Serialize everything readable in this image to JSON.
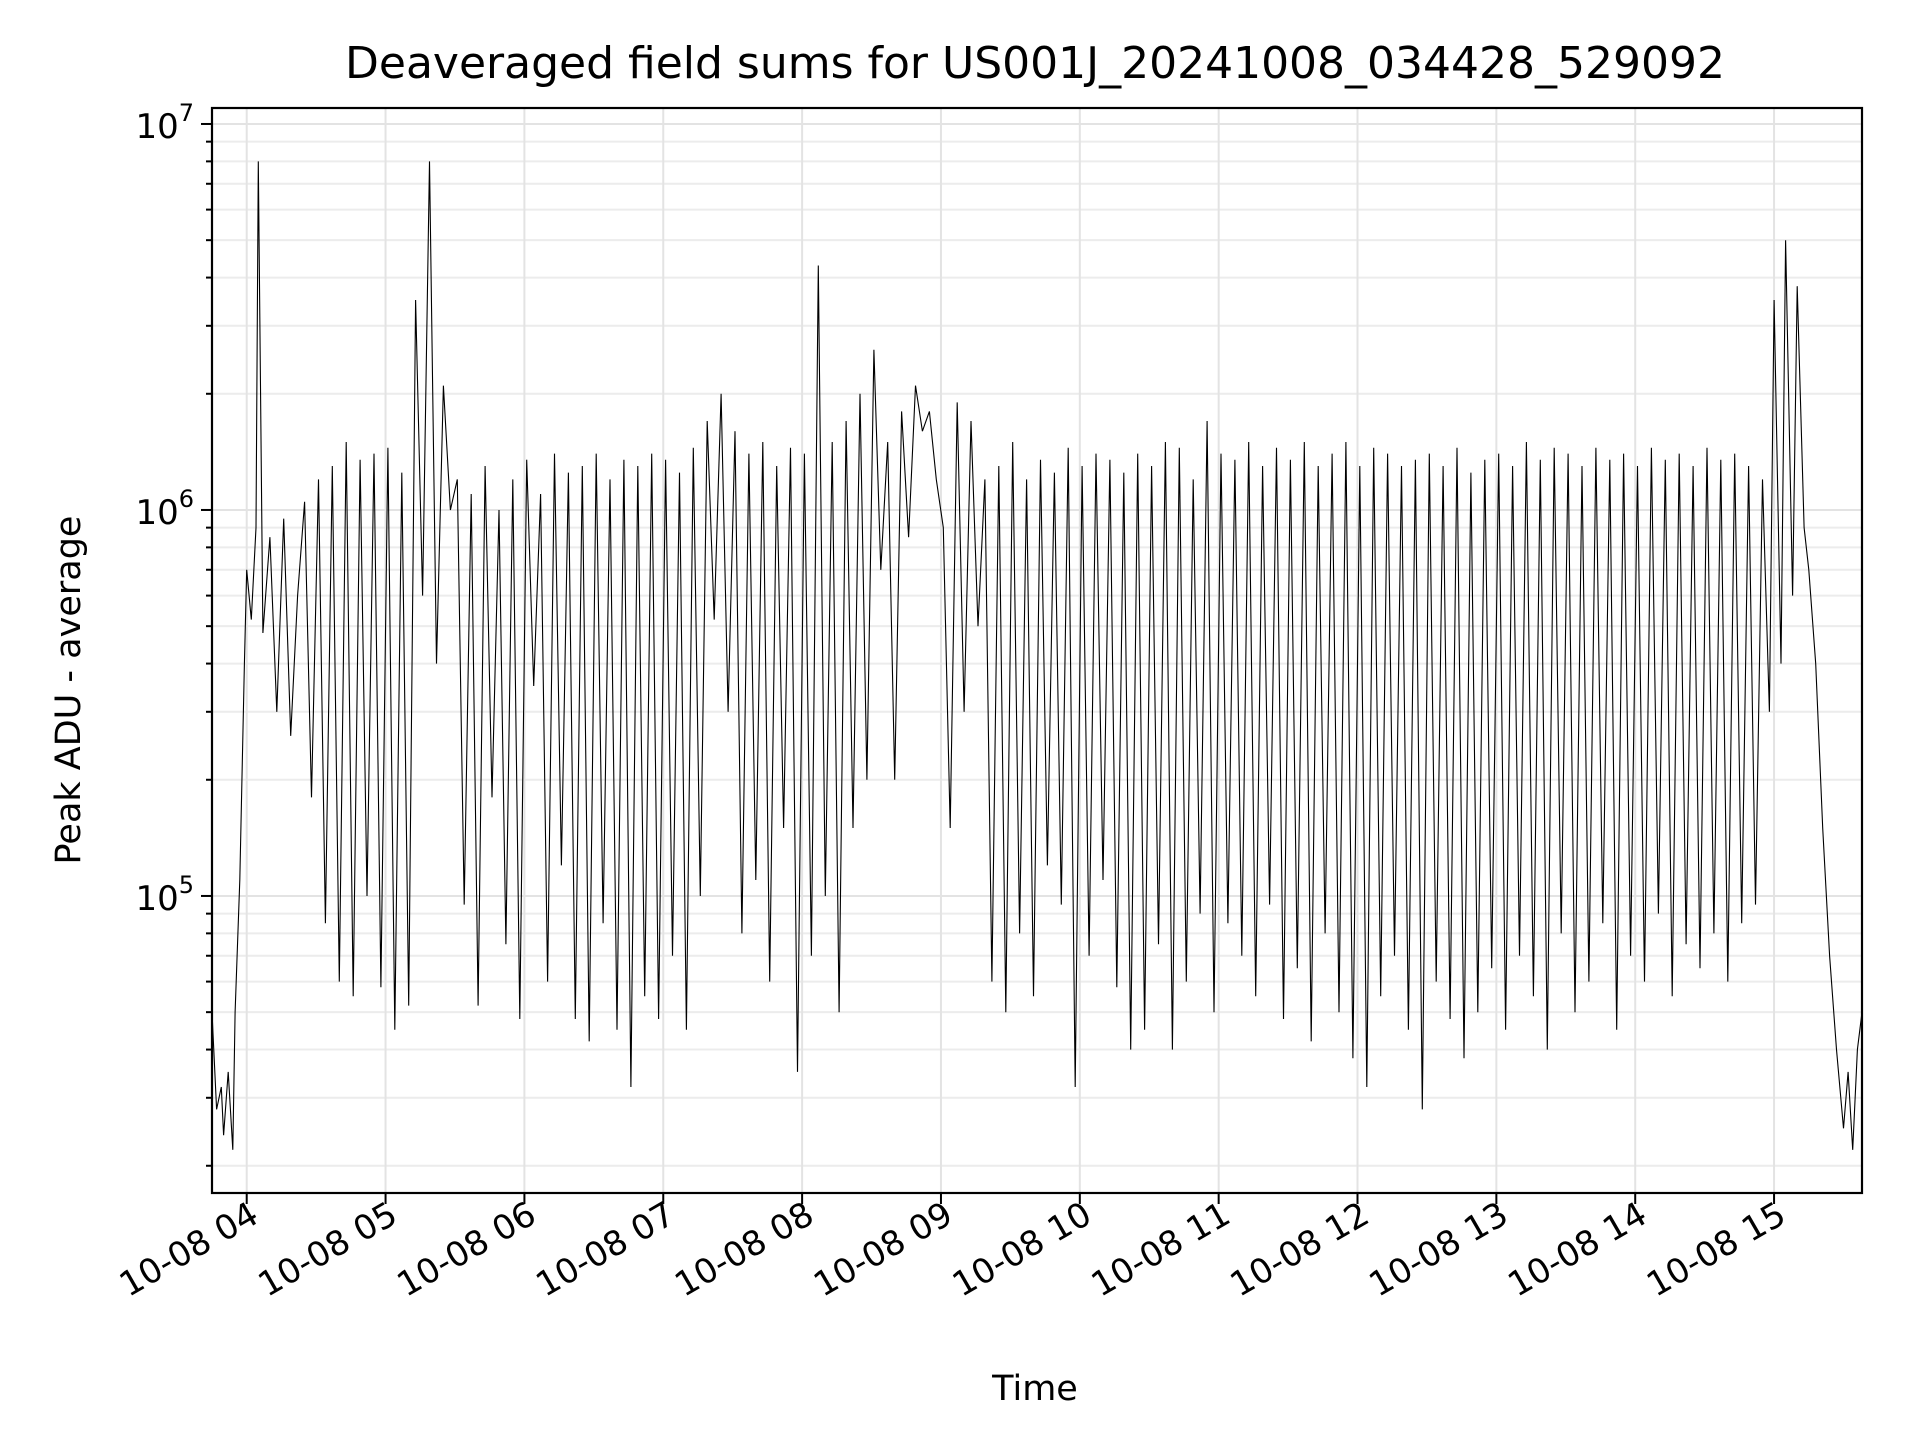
{
  "chart_data": {
    "type": "line",
    "title": "Deaveraged field sums for US001J_20241008_034428_529092",
    "xlabel": "Time",
    "ylabel": "Peak ADU - average",
    "yscale": "log",
    "ylim": [
      17000,
      11000000
    ],
    "xlim": [
      "2024-10-08 03:45",
      "2024-10-08 15:38"
    ],
    "grid": true,
    "colors": {
      "series": "#000000",
      "grid": "#e3e3e3",
      "axis": "#000000"
    },
    "x_ticks": [
      {
        "value": "2024-10-08 04:00",
        "label": "10-08 04"
      },
      {
        "value": "2024-10-08 05:00",
        "label": "10-08 05"
      },
      {
        "value": "2024-10-08 06:00",
        "label": "10-08 06"
      },
      {
        "value": "2024-10-08 07:00",
        "label": "10-08 07"
      },
      {
        "value": "2024-10-08 08:00",
        "label": "10-08 08"
      },
      {
        "value": "2024-10-08 09:00",
        "label": "10-08 09"
      },
      {
        "value": "2024-10-08 10:00",
        "label": "10-08 10"
      },
      {
        "value": "2024-10-08 11:00",
        "label": "10-08 11"
      },
      {
        "value": "2024-10-08 12:00",
        "label": "10-08 12"
      },
      {
        "value": "2024-10-08 13:00",
        "label": "10-08 13"
      },
      {
        "value": "2024-10-08 14:00",
        "label": "10-08 14"
      },
      {
        "value": "2024-10-08 15:00",
        "label": "10-08 15"
      }
    ],
    "y_ticks": [
      {
        "value": 100000,
        "base": "10",
        "exp": "5"
      },
      {
        "value": 1000000,
        "base": "10",
        "exp": "6"
      },
      {
        "value": 10000000,
        "base": "10",
        "exp": "7"
      }
    ],
    "series": [
      {
        "x": [
          "2024-10-08 03:45",
          "2024-10-08 03:47",
          "2024-10-08 03:49",
          "2024-10-08 03:50",
          "2024-10-08 03:52",
          "2024-10-08 03:54",
          "2024-10-08 03:55",
          "2024-10-08 03:57",
          "2024-10-08 03:59",
          "2024-10-08 04:00",
          "2024-10-08 04:02",
          "2024-10-08 04:04",
          "2024-10-08 04:05",
          "2024-10-08 04:07",
          "2024-10-08 04:10",
          "2024-10-08 04:13",
          "2024-10-08 04:16",
          "2024-10-08 04:19",
          "2024-10-08 04:22",
          "2024-10-08 04:25",
          "2024-10-08 04:28",
          "2024-10-08 04:31",
          "2024-10-08 04:34",
          "2024-10-08 04:37",
          "2024-10-08 04:40",
          "2024-10-08 04:43",
          "2024-10-08 04:46",
          "2024-10-08 04:49",
          "2024-10-08 04:52",
          "2024-10-08 04:55",
          "2024-10-08 04:58",
          "2024-10-08 05:01",
          "2024-10-08 05:04",
          "2024-10-08 05:07",
          "2024-10-08 05:10",
          "2024-10-08 05:13",
          "2024-10-08 05:16",
          "2024-10-08 05:19",
          "2024-10-08 05:22",
          "2024-10-08 05:25",
          "2024-10-08 05:28",
          "2024-10-08 05:31",
          "2024-10-08 05:34",
          "2024-10-08 05:37",
          "2024-10-08 05:40",
          "2024-10-08 05:43",
          "2024-10-08 05:46",
          "2024-10-08 05:49",
          "2024-10-08 05:52",
          "2024-10-08 05:55",
          "2024-10-08 05:58",
          "2024-10-08 06:01",
          "2024-10-08 06:04",
          "2024-10-08 06:07",
          "2024-10-08 06:10",
          "2024-10-08 06:13",
          "2024-10-08 06:16",
          "2024-10-08 06:19",
          "2024-10-08 06:22",
          "2024-10-08 06:25",
          "2024-10-08 06:28",
          "2024-10-08 06:31",
          "2024-10-08 06:34",
          "2024-10-08 06:37",
          "2024-10-08 06:40",
          "2024-10-08 06:43",
          "2024-10-08 06:46",
          "2024-10-08 06:49",
          "2024-10-08 06:52",
          "2024-10-08 06:55",
          "2024-10-08 06:58",
          "2024-10-08 07:01",
          "2024-10-08 07:04",
          "2024-10-08 07:07",
          "2024-10-08 07:10",
          "2024-10-08 07:13",
          "2024-10-08 07:16",
          "2024-10-08 07:19",
          "2024-10-08 07:22",
          "2024-10-08 07:25",
          "2024-10-08 07:28",
          "2024-10-08 07:31",
          "2024-10-08 07:34",
          "2024-10-08 07:37",
          "2024-10-08 07:40",
          "2024-10-08 07:43",
          "2024-10-08 07:46",
          "2024-10-08 07:49",
          "2024-10-08 07:52",
          "2024-10-08 07:55",
          "2024-10-08 07:58",
          "2024-10-08 08:01",
          "2024-10-08 08:04",
          "2024-10-08 08:07",
          "2024-10-08 08:10",
          "2024-10-08 08:13",
          "2024-10-08 08:16",
          "2024-10-08 08:19",
          "2024-10-08 08:22",
          "2024-10-08 08:25",
          "2024-10-08 08:28",
          "2024-10-08 08:31",
          "2024-10-08 08:34",
          "2024-10-08 08:37",
          "2024-10-08 08:40",
          "2024-10-08 08:43",
          "2024-10-08 08:46",
          "2024-10-08 08:49",
          "2024-10-08 08:52",
          "2024-10-08 08:55",
          "2024-10-08 08:58",
          "2024-10-08 09:01",
          "2024-10-08 09:04",
          "2024-10-08 09:07",
          "2024-10-08 09:10",
          "2024-10-08 09:13",
          "2024-10-08 09:16",
          "2024-10-08 09:19",
          "2024-10-08 09:22",
          "2024-10-08 09:25",
          "2024-10-08 09:28",
          "2024-10-08 09:31",
          "2024-10-08 09:34",
          "2024-10-08 09:37",
          "2024-10-08 09:40",
          "2024-10-08 09:43",
          "2024-10-08 09:46",
          "2024-10-08 09:49",
          "2024-10-08 09:52",
          "2024-10-08 09:55",
          "2024-10-08 09:58",
          "2024-10-08 10:01",
          "2024-10-08 10:04",
          "2024-10-08 10:07",
          "2024-10-08 10:10",
          "2024-10-08 10:13",
          "2024-10-08 10:16",
          "2024-10-08 10:19",
          "2024-10-08 10:22",
          "2024-10-08 10:25",
          "2024-10-08 10:28",
          "2024-10-08 10:31",
          "2024-10-08 10:34",
          "2024-10-08 10:37",
          "2024-10-08 10:40",
          "2024-10-08 10:43",
          "2024-10-08 10:46",
          "2024-10-08 10:49",
          "2024-10-08 10:52",
          "2024-10-08 10:55",
          "2024-10-08 10:58",
          "2024-10-08 11:01",
          "2024-10-08 11:04",
          "2024-10-08 11:07",
          "2024-10-08 11:10",
          "2024-10-08 11:13",
          "2024-10-08 11:16",
          "2024-10-08 11:19",
          "2024-10-08 11:22",
          "2024-10-08 11:25",
          "2024-10-08 11:28",
          "2024-10-08 11:31",
          "2024-10-08 11:34",
          "2024-10-08 11:37",
          "2024-10-08 11:40",
          "2024-10-08 11:43",
          "2024-10-08 11:46",
          "2024-10-08 11:49",
          "2024-10-08 11:52",
          "2024-10-08 11:55",
          "2024-10-08 11:58",
          "2024-10-08 12:01",
          "2024-10-08 12:04",
          "2024-10-08 12:07",
          "2024-10-08 12:10",
          "2024-10-08 12:13",
          "2024-10-08 12:16",
          "2024-10-08 12:19",
          "2024-10-08 12:22",
          "2024-10-08 12:25",
          "2024-10-08 12:28",
          "2024-10-08 12:31",
          "2024-10-08 12:34",
          "2024-10-08 12:37",
          "2024-10-08 12:40",
          "2024-10-08 12:43",
          "2024-10-08 12:46",
          "2024-10-08 12:49",
          "2024-10-08 12:52",
          "2024-10-08 12:55",
          "2024-10-08 12:58",
          "2024-10-08 13:01",
          "2024-10-08 13:04",
          "2024-10-08 13:07",
          "2024-10-08 13:10",
          "2024-10-08 13:13",
          "2024-10-08 13:16",
          "2024-10-08 13:19",
          "2024-10-08 13:22",
          "2024-10-08 13:25",
          "2024-10-08 13:28",
          "2024-10-08 13:31",
          "2024-10-08 13:34",
          "2024-10-08 13:37",
          "2024-10-08 13:40",
          "2024-10-08 13:43",
          "2024-10-08 13:46",
          "2024-10-08 13:49",
          "2024-10-08 13:52",
          "2024-10-08 13:55",
          "2024-10-08 13:58",
          "2024-10-08 14:01",
          "2024-10-08 14:04",
          "2024-10-08 14:07",
          "2024-10-08 14:10",
          "2024-10-08 14:13",
          "2024-10-08 14:16",
          "2024-10-08 14:19",
          "2024-10-08 14:22",
          "2024-10-08 14:25",
          "2024-10-08 14:28",
          "2024-10-08 14:31",
          "2024-10-08 14:34",
          "2024-10-08 14:37",
          "2024-10-08 14:40",
          "2024-10-08 14:43",
          "2024-10-08 14:46",
          "2024-10-08 14:49",
          "2024-10-08 14:52",
          "2024-10-08 14:55",
          "2024-10-08 14:58",
          "2024-10-08 15:00",
          "2024-10-08 15:03",
          "2024-10-08 15:05",
          "2024-10-08 15:08",
          "2024-10-08 15:10",
          "2024-10-08 15:13",
          "2024-10-08 15:15",
          "2024-10-08 15:18",
          "2024-10-08 15:21",
          "2024-10-08 15:24",
          "2024-10-08 15:27",
          "2024-10-08 15:30",
          "2024-10-08 15:32",
          "2024-10-08 15:34",
          "2024-10-08 15:36",
          "2024-10-08 15:38"
        ],
        "y": [
          50000,
          28000,
          32000,
          24000,
          35000,
          22000,
          50000,
          110000,
          400000,
          700000,
          520000,
          900000,
          8000000,
          480000,
          850000,
          300000,
          950000,
          260000,
          600000,
          1050000,
          180000,
          1200000,
          85000,
          1300000,
          60000,
          1500000,
          55000,
          1350000,
          100000,
          1400000,
          58000,
          1450000,
          45000,
          1250000,
          52000,
          3500000,
          600000,
          8000000,
          400000,
          2100000,
          1000000,
          1200000,
          95000,
          1100000,
          52000,
          1300000,
          180000,
          1000000,
          75000,
          1200000,
          48000,
          1350000,
          350000,
          1100000,
          60000,
          1400000,
          120000,
          1250000,
          48000,
          1300000,
          42000,
          1400000,
          85000,
          1200000,
          45000,
          1350000,
          32000,
          1300000,
          55000,
          1400000,
          48000,
          1350000,
          70000,
          1250000,
          45000,
          1450000,
          100000,
          1700000,
          520000,
          2000000,
          300000,
          1600000,
          80000,
          1400000,
          110000,
          1500000,
          60000,
          1300000,
          150000,
          1450000,
          35000,
          1400000,
          70000,
          4300000,
          100000,
          1500000,
          50000,
          1700000,
          150000,
          2000000,
          200000,
          2600000,
          700000,
          1500000,
          200000,
          1800000,
          850000,
          2100000,
          1600000,
          1800000,
          1200000,
          900000,
          150000,
          1900000,
          300000,
          1700000,
          500000,
          1200000,
          60000,
          1300000,
          50000,
          1500000,
          80000,
          1200000,
          55000,
          1350000,
          120000,
          1250000,
          95000,
          1450000,
          32000,
          1300000,
          70000,
          1400000,
          110000,
          1350000,
          58000,
          1250000,
          40000,
          1400000,
          45000,
          1300000,
          75000,
          1500000,
          40000,
          1450000,
          60000,
          1200000,
          90000,
          1700000,
          50000,
          1400000,
          85000,
          1350000,
          70000,
          1500000,
          55000,
          1300000,
          95000,
          1450000,
          48000,
          1350000,
          65000,
          1500000,
          42000,
          1300000,
          80000,
          1400000,
          50000,
          1500000,
          38000,
          1300000,
          32000,
          1450000,
          55000,
          1400000,
          70000,
          1300000,
          45000,
          1350000,
          28000,
          1400000,
          60000,
          1300000,
          48000,
          1450000,
          38000,
          1250000,
          50000,
          1350000,
          65000,
          1400000,
          45000,
          1300000,
          70000,
          1500000,
          55000,
          1350000,
          40000,
          1450000,
          80000,
          1400000,
          50000,
          1300000,
          60000,
          1450000,
          85000,
          1350000,
          45000,
          1400000,
          70000,
          1300000,
          60000,
          1450000,
          90000,
          1350000,
          55000,
          1400000,
          75000,
          1300000,
          65000,
          1450000,
          80000,
          1350000,
          60000,
          1400000,
          85000,
          1300000,
          95000,
          1200000,
          300000,
          3500000,
          400000,
          5000000,
          600000,
          3800000,
          900000,
          700000,
          400000,
          150000,
          70000,
          40000,
          25000,
          35000,
          22000,
          40000,
          50000
        ]
      }
    ]
  }
}
